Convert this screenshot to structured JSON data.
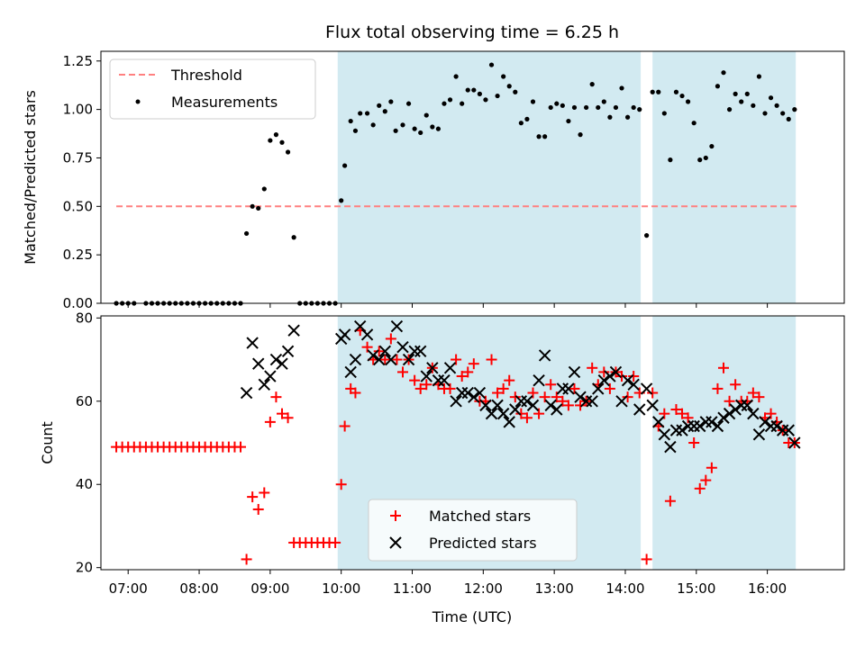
{
  "chart_data": {
    "type": "scatter",
    "title": "Flux total observing time = 6.25 h",
    "xlabel": "Time (UTC)",
    "x_ticks": [
      "07:00",
      "08:00",
      "09:00",
      "10:00",
      "11:00",
      "12:00",
      "13:00",
      "14:00",
      "15:00",
      "16:00"
    ],
    "xlim": [
      "06:37",
      "17:05"
    ],
    "shaded_intervals": [
      [
        "09:57",
        "14:13"
      ],
      [
        "14:23",
        "16:24"
      ]
    ],
    "colors": {
      "shade": "#add8e6",
      "threshold": "#ff8080",
      "matched": "#ff0000",
      "predicted": "#000000",
      "measurement": "#000000"
    },
    "top": {
      "ylabel": "Matched/Predicted stars",
      "ylim": [
        0,
        1.3
      ],
      "y_ticks": [
        "0.00",
        "0.25",
        "0.50",
        "0.75",
        "1.00",
        "1.25"
      ],
      "legend": {
        "position": "upper-left",
        "threshold_label": "Threshold",
        "measurements_label": "Measurements"
      },
      "threshold": {
        "value": 0.5,
        "x_range": [
          "06:50",
          "16:25"
        ]
      },
      "measurements": [
        [
          "06:50",
          0
        ],
        [
          "06:55",
          0
        ],
        [
          "07:00",
          0
        ],
        [
          "07:05",
          0
        ],
        [
          "07:15",
          0
        ],
        [
          "07:20",
          0
        ],
        [
          "07:25",
          0
        ],
        [
          "07:30",
          0
        ],
        [
          "07:35",
          0
        ],
        [
          "07:40",
          0
        ],
        [
          "07:45",
          0
        ],
        [
          "07:50",
          0
        ],
        [
          "07:55",
          0
        ],
        [
          "08:00",
          0
        ],
        [
          "08:05",
          0
        ],
        [
          "08:10",
          0
        ],
        [
          "08:15",
          0
        ],
        [
          "08:20",
          0
        ],
        [
          "08:25",
          0
        ],
        [
          "08:30",
          0
        ],
        [
          "08:35",
          0
        ],
        [
          "08:40",
          0.36
        ],
        [
          "08:45",
          0.5
        ],
        [
          "08:50",
          0.49
        ],
        [
          "08:55",
          0.59
        ],
        [
          "09:00",
          0.84
        ],
        [
          "09:05",
          0.87
        ],
        [
          "09:10",
          0.83
        ],
        [
          "09:15",
          0.78
        ],
        [
          "09:20",
          0.34
        ],
        [
          "09:25",
          0
        ],
        [
          "09:30",
          0
        ],
        [
          "09:35",
          0
        ],
        [
          "09:40",
          0
        ],
        [
          "09:45",
          0
        ],
        [
          "09:50",
          0
        ],
        [
          "09:55",
          0
        ],
        [
          "10:00",
          0.53
        ],
        [
          "10:03",
          0.71
        ],
        [
          "10:08",
          0.94
        ],
        [
          "10:12",
          0.89
        ],
        [
          "10:16",
          0.98
        ],
        [
          "10:22",
          0.98
        ],
        [
          "10:27",
          0.92
        ],
        [
          "10:32",
          1.02
        ],
        [
          "10:37",
          0.99
        ],
        [
          "10:42",
          1.04
        ],
        [
          "10:46",
          0.89
        ],
        [
          "10:52",
          0.92
        ],
        [
          "10:57",
          1.03
        ],
        [
          "11:02",
          0.9
        ],
        [
          "11:07",
          0.88
        ],
        [
          "11:12",
          0.97
        ],
        [
          "11:17",
          0.91
        ],
        [
          "11:22",
          0.9
        ],
        [
          "11:27",
          1.03
        ],
        [
          "11:32",
          1.05
        ],
        [
          "11:37",
          1.17
        ],
        [
          "11:42",
          1.03
        ],
        [
          "11:47",
          1.1
        ],
        [
          "11:52",
          1.1
        ],
        [
          "11:57",
          1.08
        ],
        [
          "12:02",
          1.05
        ],
        [
          "12:07",
          1.23
        ],
        [
          "12:12",
          1.07
        ],
        [
          "12:17",
          1.17
        ],
        [
          "12:22",
          1.12
        ],
        [
          "12:27",
          1.09
        ],
        [
          "12:32",
          0.93
        ],
        [
          "12:37",
          0.95
        ],
        [
          "12:42",
          1.04
        ],
        [
          "12:47",
          0.86
        ],
        [
          "12:52",
          0.86
        ],
        [
          "12:57",
          1.01
        ],
        [
          "13:02",
          1.03
        ],
        [
          "13:07",
          1.02
        ],
        [
          "13:12",
          0.94
        ],
        [
          "13:17",
          1.01
        ],
        [
          "13:22",
          0.87
        ],
        [
          "13:27",
          1.01
        ],
        [
          "13:32",
          1.13
        ],
        [
          "13:37",
          1.01
        ],
        [
          "13:42",
          1.04
        ],
        [
          "13:47",
          0.96
        ],
        [
          "13:52",
          1.01
        ],
        [
          "13:57",
          1.11
        ],
        [
          "14:02",
          0.96
        ],
        [
          "14:07",
          1.01
        ],
        [
          "14:12",
          1.0
        ],
        [
          "14:18",
          0.35
        ],
        [
          "14:23",
          1.09
        ],
        [
          "14:28",
          1.09
        ],
        [
          "14:33",
          0.98
        ],
        [
          "14:38",
          0.74
        ],
        [
          "14:43",
          1.09
        ],
        [
          "14:48",
          1.07
        ],
        [
          "14:53",
          1.04
        ],
        [
          "14:58",
          0.93
        ],
        [
          "15:03",
          0.74
        ],
        [
          "15:08",
          0.75
        ],
        [
          "15:13",
          0.81
        ],
        [
          "15:18",
          1.12
        ],
        [
          "15:23",
          1.19
        ],
        [
          "15:28",
          1.0
        ],
        [
          "15:33",
          1.08
        ],
        [
          "15:38",
          1.04
        ],
        [
          "15:43",
          1.08
        ],
        [
          "15:48",
          1.02
        ],
        [
          "15:53",
          1.17
        ],
        [
          "15:58",
          0.98
        ],
        [
          "16:03",
          1.06
        ],
        [
          "16:08",
          1.02
        ],
        [
          "16:13",
          0.98
        ],
        [
          "16:18",
          0.95
        ],
        [
          "16:23",
          1.0
        ]
      ]
    },
    "bottom": {
      "ylabel": "Count",
      "ylim": [
        19.5,
        80.5
      ],
      "y_ticks": [
        "20",
        "40",
        "60",
        "80"
      ],
      "legend": {
        "position": "lower-center",
        "matched_label": "Matched stars",
        "predicted_label": "Predicted stars"
      },
      "matched": [
        [
          "06:50",
          49
        ],
        [
          "06:55",
          49
        ],
        [
          "07:00",
          49
        ],
        [
          "07:05",
          49
        ],
        [
          "07:10",
          49
        ],
        [
          "07:15",
          49
        ],
        [
          "07:20",
          49
        ],
        [
          "07:25",
          49
        ],
        [
          "07:30",
          49
        ],
        [
          "07:35",
          49
        ],
        [
          "07:40",
          49
        ],
        [
          "07:45",
          49
        ],
        [
          "07:50",
          49
        ],
        [
          "07:55",
          49
        ],
        [
          "08:00",
          49
        ],
        [
          "08:05",
          49
        ],
        [
          "08:10",
          49
        ],
        [
          "08:15",
          49
        ],
        [
          "08:20",
          49
        ],
        [
          "08:25",
          49
        ],
        [
          "08:30",
          49
        ],
        [
          "08:35",
          49
        ],
        [
          "08:40",
          22
        ],
        [
          "08:45",
          37
        ],
        [
          "08:50",
          34
        ],
        [
          "08:55",
          38
        ],
        [
          "09:00",
          55
        ],
        [
          "09:05",
          61
        ],
        [
          "09:10",
          57
        ],
        [
          "09:15",
          56
        ],
        [
          "09:20",
          26
        ],
        [
          "09:25",
          26
        ],
        [
          "09:30",
          26
        ],
        [
          "09:35",
          26
        ],
        [
          "09:40",
          26
        ],
        [
          "09:45",
          26
        ],
        [
          "09:50",
          26
        ],
        [
          "09:55",
          26
        ],
        [
          "10:00",
          40
        ],
        [
          "10:03",
          54
        ],
        [
          "10:08",
          63
        ],
        [
          "10:12",
          62
        ],
        [
          "10:16",
          77
        ],
        [
          "10:22",
          73
        ],
        [
          "10:27",
          70
        ],
        [
          "10:32",
          72
        ],
        [
          "10:37",
          70
        ],
        [
          "10:42",
          75
        ],
        [
          "10:47",
          70
        ],
        [
          "10:52",
          67
        ],
        [
          "10:57",
          70
        ],
        [
          "11:02",
          65
        ],
        [
          "11:07",
          63
        ],
        [
          "11:12",
          64
        ],
        [
          "11:17",
          68
        ],
        [
          "11:22",
          64
        ],
        [
          "11:27",
          63
        ],
        [
          "11:32",
          63
        ],
        [
          "11:37",
          70
        ],
        [
          "11:42",
          66
        ],
        [
          "11:47",
          67
        ],
        [
          "11:52",
          69
        ],
        [
          "11:57",
          60
        ],
        [
          "12:02",
          60
        ],
        [
          "12:07",
          70
        ],
        [
          "12:12",
          62
        ],
        [
          "12:17",
          63
        ],
        [
          "12:22",
          65
        ],
        [
          "12:27",
          61
        ],
        [
          "12:32",
          57
        ],
        [
          "12:37",
          56
        ],
        [
          "12:42",
          62
        ],
        [
          "12:47",
          57
        ],
        [
          "12:52",
          61
        ],
        [
          "12:57",
          64
        ],
        [
          "13:02",
          61
        ],
        [
          "13:07",
          60
        ],
        [
          "13:12",
          59
        ],
        [
          "13:17",
          63
        ],
        [
          "13:22",
          59
        ],
        [
          "13:27",
          60
        ],
        [
          "13:32",
          68
        ],
        [
          "13:37",
          64
        ],
        [
          "13:42",
          67
        ],
        [
          "13:47",
          63
        ],
        [
          "13:52",
          67
        ],
        [
          "13:57",
          66
        ],
        [
          "14:02",
          61
        ],
        [
          "14:07",
          66
        ],
        [
          "14:12",
          62
        ],
        [
          "14:18",
          22
        ],
        [
          "14:23",
          62
        ],
        [
          "14:28",
          54
        ],
        [
          "14:33",
          57
        ],
        [
          "14:38",
          36
        ],
        [
          "14:43",
          58
        ],
        [
          "14:48",
          57
        ],
        [
          "14:53",
          56
        ],
        [
          "14:58",
          50
        ],
        [
          "15:03",
          39
        ],
        [
          "15:08",
          41
        ],
        [
          "15:13",
          44
        ],
        [
          "15:18",
          63
        ],
        [
          "15:23",
          68
        ],
        [
          "15:28",
          60
        ],
        [
          "15:33",
          64
        ],
        [
          "15:38",
          60
        ],
        [
          "15:43",
          60
        ],
        [
          "15:48",
          62
        ],
        [
          "15:53",
          61
        ],
        [
          "15:58",
          56
        ],
        [
          "16:03",
          57
        ],
        [
          "16:08",
          55
        ],
        [
          "16:13",
          53
        ],
        [
          "16:18",
          50
        ],
        [
          "16:23",
          50
        ]
      ],
      "predicted": [
        [
          "08:40",
          62
        ],
        [
          "08:45",
          74
        ],
        [
          "08:50",
          69
        ],
        [
          "08:55",
          64
        ],
        [
          "09:00",
          66
        ],
        [
          "09:05",
          70
        ],
        [
          "09:10",
          69
        ],
        [
          "09:15",
          72
        ],
        [
          "09:20",
          77
        ],
        [
          "10:00",
          75
        ],
        [
          "10:03",
          76
        ],
        [
          "10:08",
          67
        ],
        [
          "10:12",
          70
        ],
        [
          "10:16",
          78
        ],
        [
          "10:22",
          76
        ],
        [
          "10:27",
          71
        ],
        [
          "10:32",
          70
        ],
        [
          "10:37",
          72
        ],
        [
          "10:42",
          70
        ],
        [
          "10:47",
          78
        ],
        [
          "10:52",
          73
        ],
        [
          "10:57",
          70
        ],
        [
          "11:02",
          72
        ],
        [
          "11:07",
          72
        ],
        [
          "11:12",
          66
        ],
        [
          "11:17",
          68
        ],
        [
          "11:22",
          65
        ],
        [
          "11:27",
          65
        ],
        [
          "11:32",
          68
        ],
        [
          "11:37",
          60
        ],
        [
          "11:42",
          62
        ],
        [
          "11:47",
          62
        ],
        [
          "11:52",
          61
        ],
        [
          "11:57",
          62
        ],
        [
          "12:02",
          59
        ],
        [
          "12:07",
          57
        ],
        [
          "12:12",
          59
        ],
        [
          "12:17",
          57
        ],
        [
          "12:22",
          55
        ],
        [
          "12:27",
          58
        ],
        [
          "12:32",
          60
        ],
        [
          "12:37",
          60
        ],
        [
          "12:42",
          59
        ],
        [
          "12:47",
          65
        ],
        [
          "12:52",
          71
        ],
        [
          "12:57",
          59
        ],
        [
          "13:02",
          58
        ],
        [
          "13:07",
          63
        ],
        [
          "13:12",
          63
        ],
        [
          "13:17",
          67
        ],
        [
          "13:22",
          61
        ],
        [
          "13:27",
          60
        ],
        [
          "13:32",
          60
        ],
        [
          "13:37",
          63
        ],
        [
          "13:42",
          65
        ],
        [
          "13:47",
          66
        ],
        [
          "13:52",
          67
        ],
        [
          "13:57",
          60
        ],
        [
          "14:02",
          65
        ],
        [
          "14:07",
          64
        ],
        [
          "14:12",
          58
        ],
        [
          "14:18",
          63
        ],
        [
          "14:23",
          59
        ],
        [
          "14:28",
          55
        ],
        [
          "14:33",
          52
        ],
        [
          "14:38",
          49
        ],
        [
          "14:43",
          53
        ],
        [
          "14:48",
          53
        ],
        [
          "14:53",
          54
        ],
        [
          "14:58",
          54
        ],
        [
          "15:03",
          54
        ],
        [
          "15:08",
          55
        ],
        [
          "15:13",
          55
        ],
        [
          "15:18",
          54
        ],
        [
          "15:23",
          56
        ],
        [
          "15:28",
          57
        ],
        [
          "15:33",
          58
        ],
        [
          "15:38",
          59
        ],
        [
          "15:43",
          59
        ],
        [
          "15:48",
          57
        ],
        [
          "15:53",
          52
        ],
        [
          "15:58",
          55
        ],
        [
          "16:03",
          54
        ],
        [
          "16:08",
          54
        ],
        [
          "16:13",
          53
        ],
        [
          "16:18",
          53
        ],
        [
          "16:23",
          50
        ]
      ]
    }
  }
}
